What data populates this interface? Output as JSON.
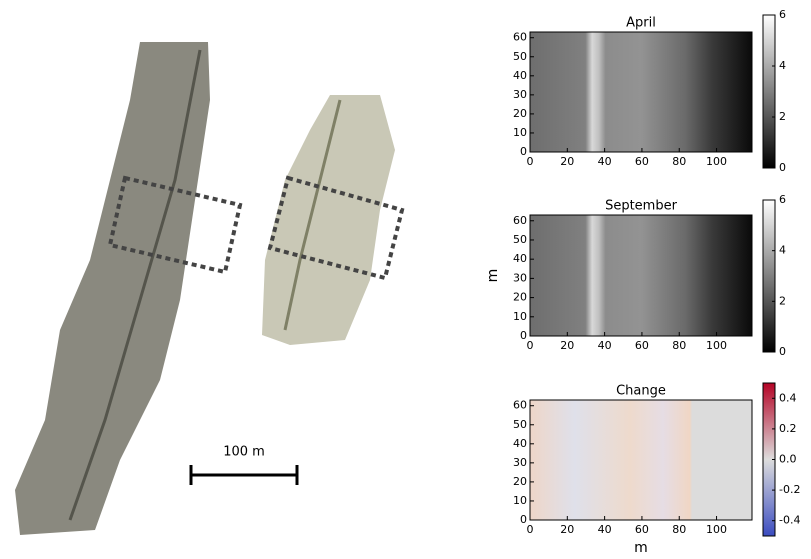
{
  "scale_bar_label": "100 m",
  "chart_data": [
    {
      "type": "heatmap",
      "title": "April",
      "colormap": "gray",
      "xlim": [
        0,
        119
      ],
      "xticks": [
        0,
        20,
        40,
        60,
        80,
        100
      ],
      "ylim": [
        0,
        63
      ],
      "yticks": [
        0,
        10,
        20,
        30,
        40,
        50,
        60
      ],
      "clim": [
        0,
        6
      ],
      "cticks": [
        0,
        2,
        4,
        6
      ]
    },
    {
      "type": "heatmap",
      "title": "September",
      "ylabel": "m",
      "colormap": "gray",
      "xlim": [
        0,
        119
      ],
      "xticks": [
        0,
        20,
        40,
        60,
        80,
        100
      ],
      "ylim": [
        0,
        63
      ],
      "yticks": [
        0,
        10,
        20,
        30,
        40,
        50,
        60
      ],
      "clim": [
        0,
        6
      ],
      "cticks": [
        0,
        2,
        4,
        6
      ]
    },
    {
      "type": "heatmap",
      "title": "Change",
      "xlabel": "m",
      "colormap": "coolwarm",
      "xlim": [
        0,
        119
      ],
      "xticks": [
        0,
        20,
        40,
        60,
        80,
        100
      ],
      "ylim": [
        0,
        63
      ],
      "yticks": [
        0,
        10,
        20,
        30,
        40,
        50,
        60
      ],
      "clim": [
        -0.5,
        0.5
      ],
      "cticks": [
        -0.4,
        -0.2,
        {
          "value": 0,
          "label": "0.0"
        },
        0.2,
        0.4
      ]
    }
  ]
}
